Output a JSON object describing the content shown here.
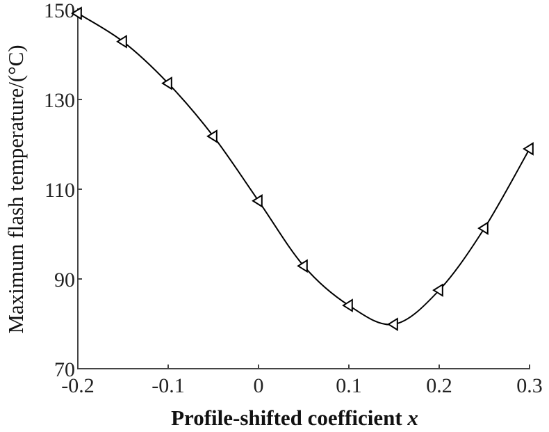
{
  "chart_data": {
    "type": "line",
    "title": "",
    "xlabel": "Profile-shifted coefficient x",
    "xlabel_text": "Profile-shifted coefficient ",
    "xlabel_var": "x",
    "ylabel": "Maximum flash temperature/(°C)",
    "xlim": [
      -0.2,
      0.3
    ],
    "ylim": [
      70,
      150
    ],
    "xticks": [
      -0.2,
      -0.1,
      0,
      0.1,
      0.2,
      0.3
    ],
    "xtick_labels": [
      "-0.2",
      "-0.1",
      "0",
      "0.1",
      "0.2",
      "0.3"
    ],
    "yticks": [
      70,
      90,
      110,
      130,
      150
    ],
    "ytick_labels": [
      "70",
      "90",
      "110",
      "130",
      "150"
    ],
    "grid": false,
    "legend": null,
    "series": [
      {
        "name": "Maximum flash temperature",
        "marker": "triangle-left",
        "color": "#000000",
        "x": [
          -0.2,
          -0.15,
          -0.1,
          -0.05,
          0,
          0.05,
          0.1,
          0.15,
          0.2,
          0.25,
          0.3
        ],
        "values": [
          149.2,
          142.9,
          133.6,
          121.8,
          107.4,
          92.9,
          84.1,
          79.9,
          87.5,
          101.3,
          119.0
        ]
      }
    ]
  }
}
